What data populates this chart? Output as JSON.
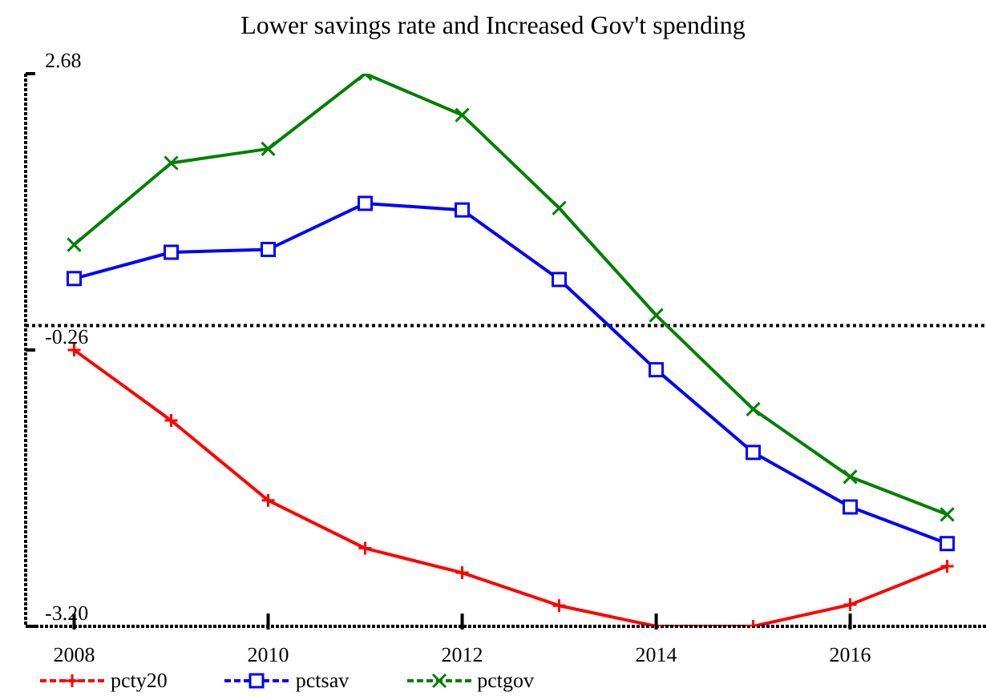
{
  "chart_data": {
    "type": "line",
    "title": "Lower savings rate and Increased Gov't spending",
    "x": [
      2008,
      2009,
      2010,
      2011,
      2012,
      2013,
      2014,
      2015,
      2016,
      2017
    ],
    "xlim": [
      2007.5,
      2017.4
    ],
    "xticks": [
      2008,
      2010,
      2012,
      2014,
      2016
    ],
    "ylim": [
      -3.2,
      2.68
    ],
    "yticks": [
      {
        "value": 2.68,
        "label": "2.68"
      },
      {
        "value": -0.26,
        "label": "-0.26"
      },
      {
        "value": -3.2,
        "label": "-3.20"
      }
    ],
    "ref_lines": [
      {
        "axis": "y",
        "value": 0,
        "color": "#000000",
        "line_style": "dotted"
      }
    ],
    "legend": "bottom left",
    "line_style": "solid",
    "series": [
      {
        "name": "pcty20",
        "color": "#ff0000",
        "marker": "cross",
        "values": [
          -0.26,
          -1.01,
          -1.86,
          -2.37,
          -2.63,
          -2.98,
          -3.2,
          -3.2,
          -2.97,
          -2.56
        ]
      },
      {
        "name": "pctsav",
        "color": "#0000ff",
        "marker": "square",
        "values": [
          0.5,
          0.78,
          0.81,
          1.3,
          1.23,
          0.49,
          -0.47,
          -1.35,
          -1.93,
          -2.32
        ]
      },
      {
        "name": "pctgov",
        "color": "#008000",
        "marker": "x",
        "values": [
          0.86,
          1.73,
          1.88,
          2.68,
          2.24,
          1.25,
          0.11,
          -0.89,
          -1.61,
          -2.01
        ]
      }
    ]
  }
}
